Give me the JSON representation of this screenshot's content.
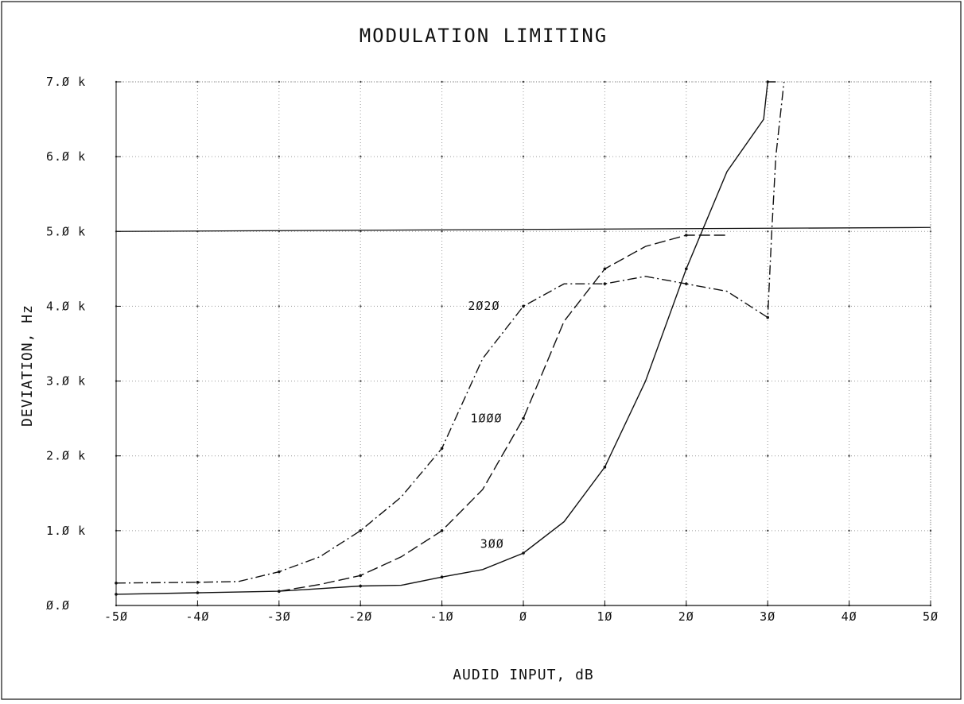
{
  "chart_data": {
    "type": "line",
    "title": "MODULATION LIMITING",
    "xlabel": "AUDID INPUT, dB",
    "ylabel": "DEVIATION, Hz",
    "xlim": [
      -50,
      50
    ],
    "ylim": [
      0,
      7000
    ],
    "grid": true,
    "x_ticks": [
      -50,
      -40,
      -30,
      -20,
      -10,
      0,
      10,
      20,
      30,
      40,
      50
    ],
    "x_tick_labels": [
      "-5Ø",
      "-4Ø",
      "-3Ø",
      "-2Ø",
      "-1Ø",
      "Ø",
      "1Ø",
      "2Ø",
      "3Ø",
      "4Ø",
      "5Ø"
    ],
    "y_ticks": [
      0,
      1000,
      2000,
      3000,
      4000,
      5000,
      6000,
      7000
    ],
    "y_tick_labels": [
      "Ø.Ø",
      "1.Ø k",
      "2.Ø k",
      "3.Ø k",
      "4.Ø k",
      "5.Ø k",
      "6.Ø k",
      "7.Ø k"
    ],
    "reference_line": {
      "y": 5000
    },
    "series": [
      {
        "name": "3ØØ",
        "style": "solid",
        "x": [
          -50,
          -40,
          -30,
          -20,
          -15,
          -10,
          -5,
          0,
          5,
          10,
          15,
          20,
          25,
          29.5,
          30,
          31
        ],
        "y": [
          150,
          170,
          190,
          260,
          270,
          380,
          480,
          700,
          1120,
          1850,
          3000,
          4500,
          5800,
          6500,
          7000,
          7000
        ]
      },
      {
        "name": "1ØØØ",
        "style": "dashed",
        "x": [
          -30,
          -25,
          -20,
          -15,
          -10,
          -5,
          0,
          5,
          10,
          15,
          20,
          25
        ],
        "y": [
          190,
          280,
          400,
          650,
          1000,
          1550,
          2500,
          3800,
          4500,
          4800,
          4950,
          4950
        ]
      },
      {
        "name": "2Ø2Ø",
        "style": "dash-dot",
        "x": [
          -50,
          -40,
          -35,
          -30,
          -25,
          -20,
          -15,
          -10,
          -5,
          0,
          5,
          10,
          15,
          20,
          25,
          30,
          30.5,
          31,
          32
        ],
        "y": [
          300,
          310,
          320,
          450,
          650,
          1000,
          1450,
          2100,
          3300,
          4000,
          4300,
          4300,
          4400,
          4300,
          4200,
          3850,
          5000,
          6000,
          7000
        ]
      }
    ],
    "curve_labels": [
      "2Ø2Ø",
      "1ØØØ",
      "3ØØ"
    ],
    "colors": {
      "ink": "#111111",
      "grid": "#9a9a9a",
      "background": "#ffffff"
    }
  }
}
